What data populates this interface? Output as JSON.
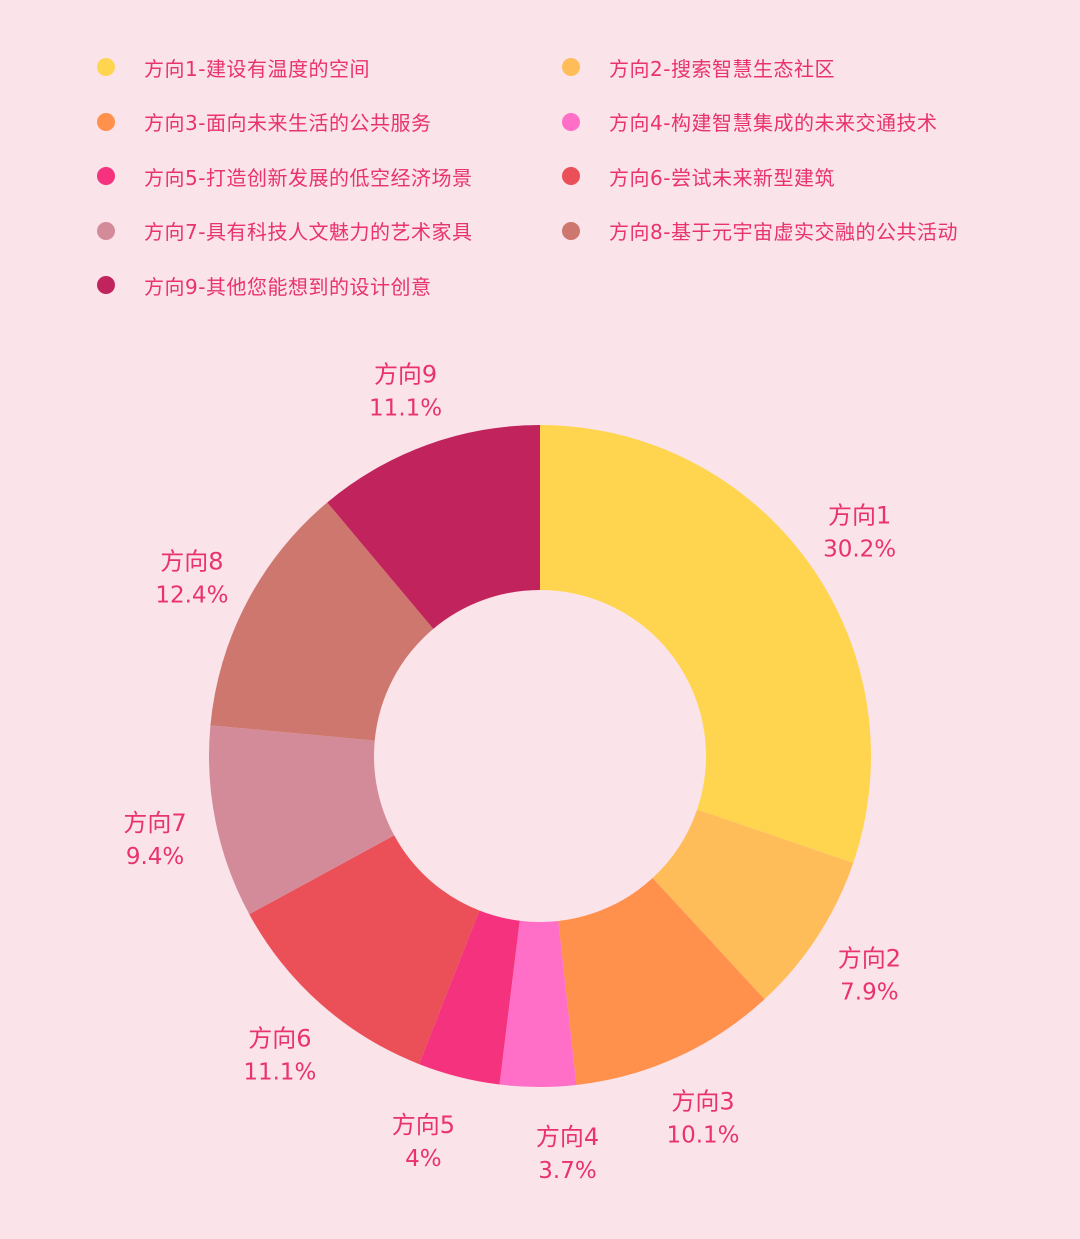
{
  "chart_data": {
    "type": "pie",
    "donut": true,
    "legend_position": "top",
    "categories": [
      "方向1",
      "方向2",
      "方向3",
      "方向4",
      "方向5",
      "方向6",
      "方向7",
      "方向8",
      "方向9"
    ],
    "legend_labels": [
      "方向1-建设有温度的空间",
      "方向2-搜索智慧生态社区",
      "方向3-面向未来生活的公共服务",
      "方向4-构建智慧集成的未来交通技术",
      "方向5-打造创新发展的低空经济场景",
      "方向6-尝试未来新型建筑",
      "方向7-具有科技人文魅力的艺术家具",
      "方向8-基于元宇宙虚实交融的公共活动",
      "方向9-其他您能想到的设计创意"
    ],
    "values": [
      30.2,
      7.9,
      10.1,
      3.7,
      4,
      11.1,
      9.4,
      12.4,
      11.1
    ],
    "value_labels": [
      "30.2%",
      "7.9%",
      "10.1%",
      "3.7%",
      "4%",
      "11.1%",
      "9.4%",
      "12.4%",
      "11.1%"
    ],
    "colors": [
      "#ffd54f",
      "#ffbd5a",
      "#ff914d",
      "#ff6fc8",
      "#f5327e",
      "#eb4f57",
      "#d48b99",
      "#cd776f",
      "#c1245c"
    ],
    "label_color": "#e8336d",
    "background": "#fbe3ea"
  }
}
